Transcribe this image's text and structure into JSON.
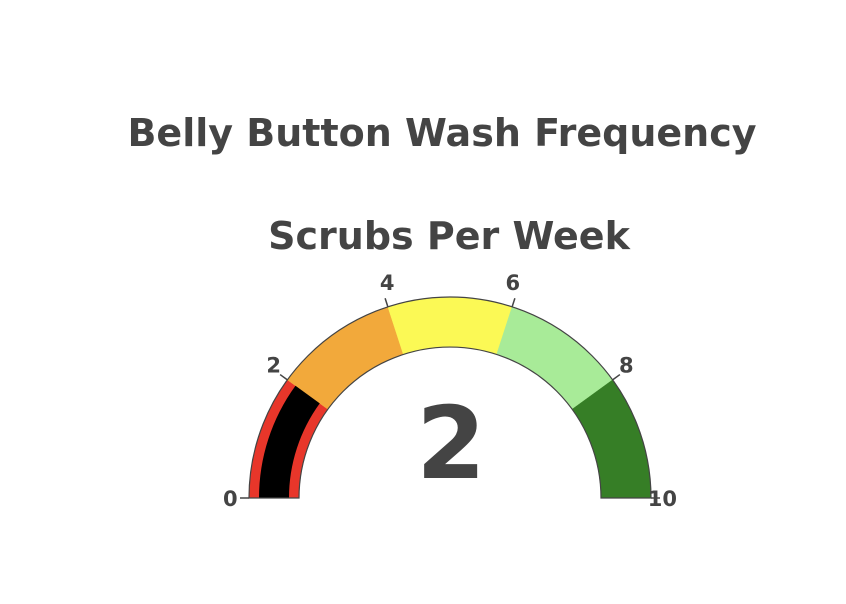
{
  "chart_data": {
    "type": "gauge",
    "title": "Belly Button Wash Frequency",
    "subtitle": "Scrubs Per Week",
    "value": 2,
    "value_label": "2",
    "range": [
      0,
      10
    ],
    "ticks": [
      {
        "value": 0,
        "label": "0"
      },
      {
        "value": 2,
        "label": "2"
      },
      {
        "value": 4,
        "label": "4"
      },
      {
        "value": 6,
        "label": "6"
      },
      {
        "value": 8,
        "label": "8"
      },
      {
        "value": 10,
        "label": "10"
      }
    ],
    "steps": [
      {
        "range": [
          0,
          2
        ],
        "color": "#e8362a"
      },
      {
        "range": [
          2,
          4
        ],
        "color": "#f2a93b"
      },
      {
        "range": [
          4,
          6
        ],
        "color": "#fbf955"
      },
      {
        "range": [
          6,
          8
        ],
        "color": "#a8eb98"
      },
      {
        "range": [
          8,
          10
        ],
        "color": "#367e26"
      }
    ],
    "bar_color": "#000000",
    "text_color": "#444444"
  }
}
